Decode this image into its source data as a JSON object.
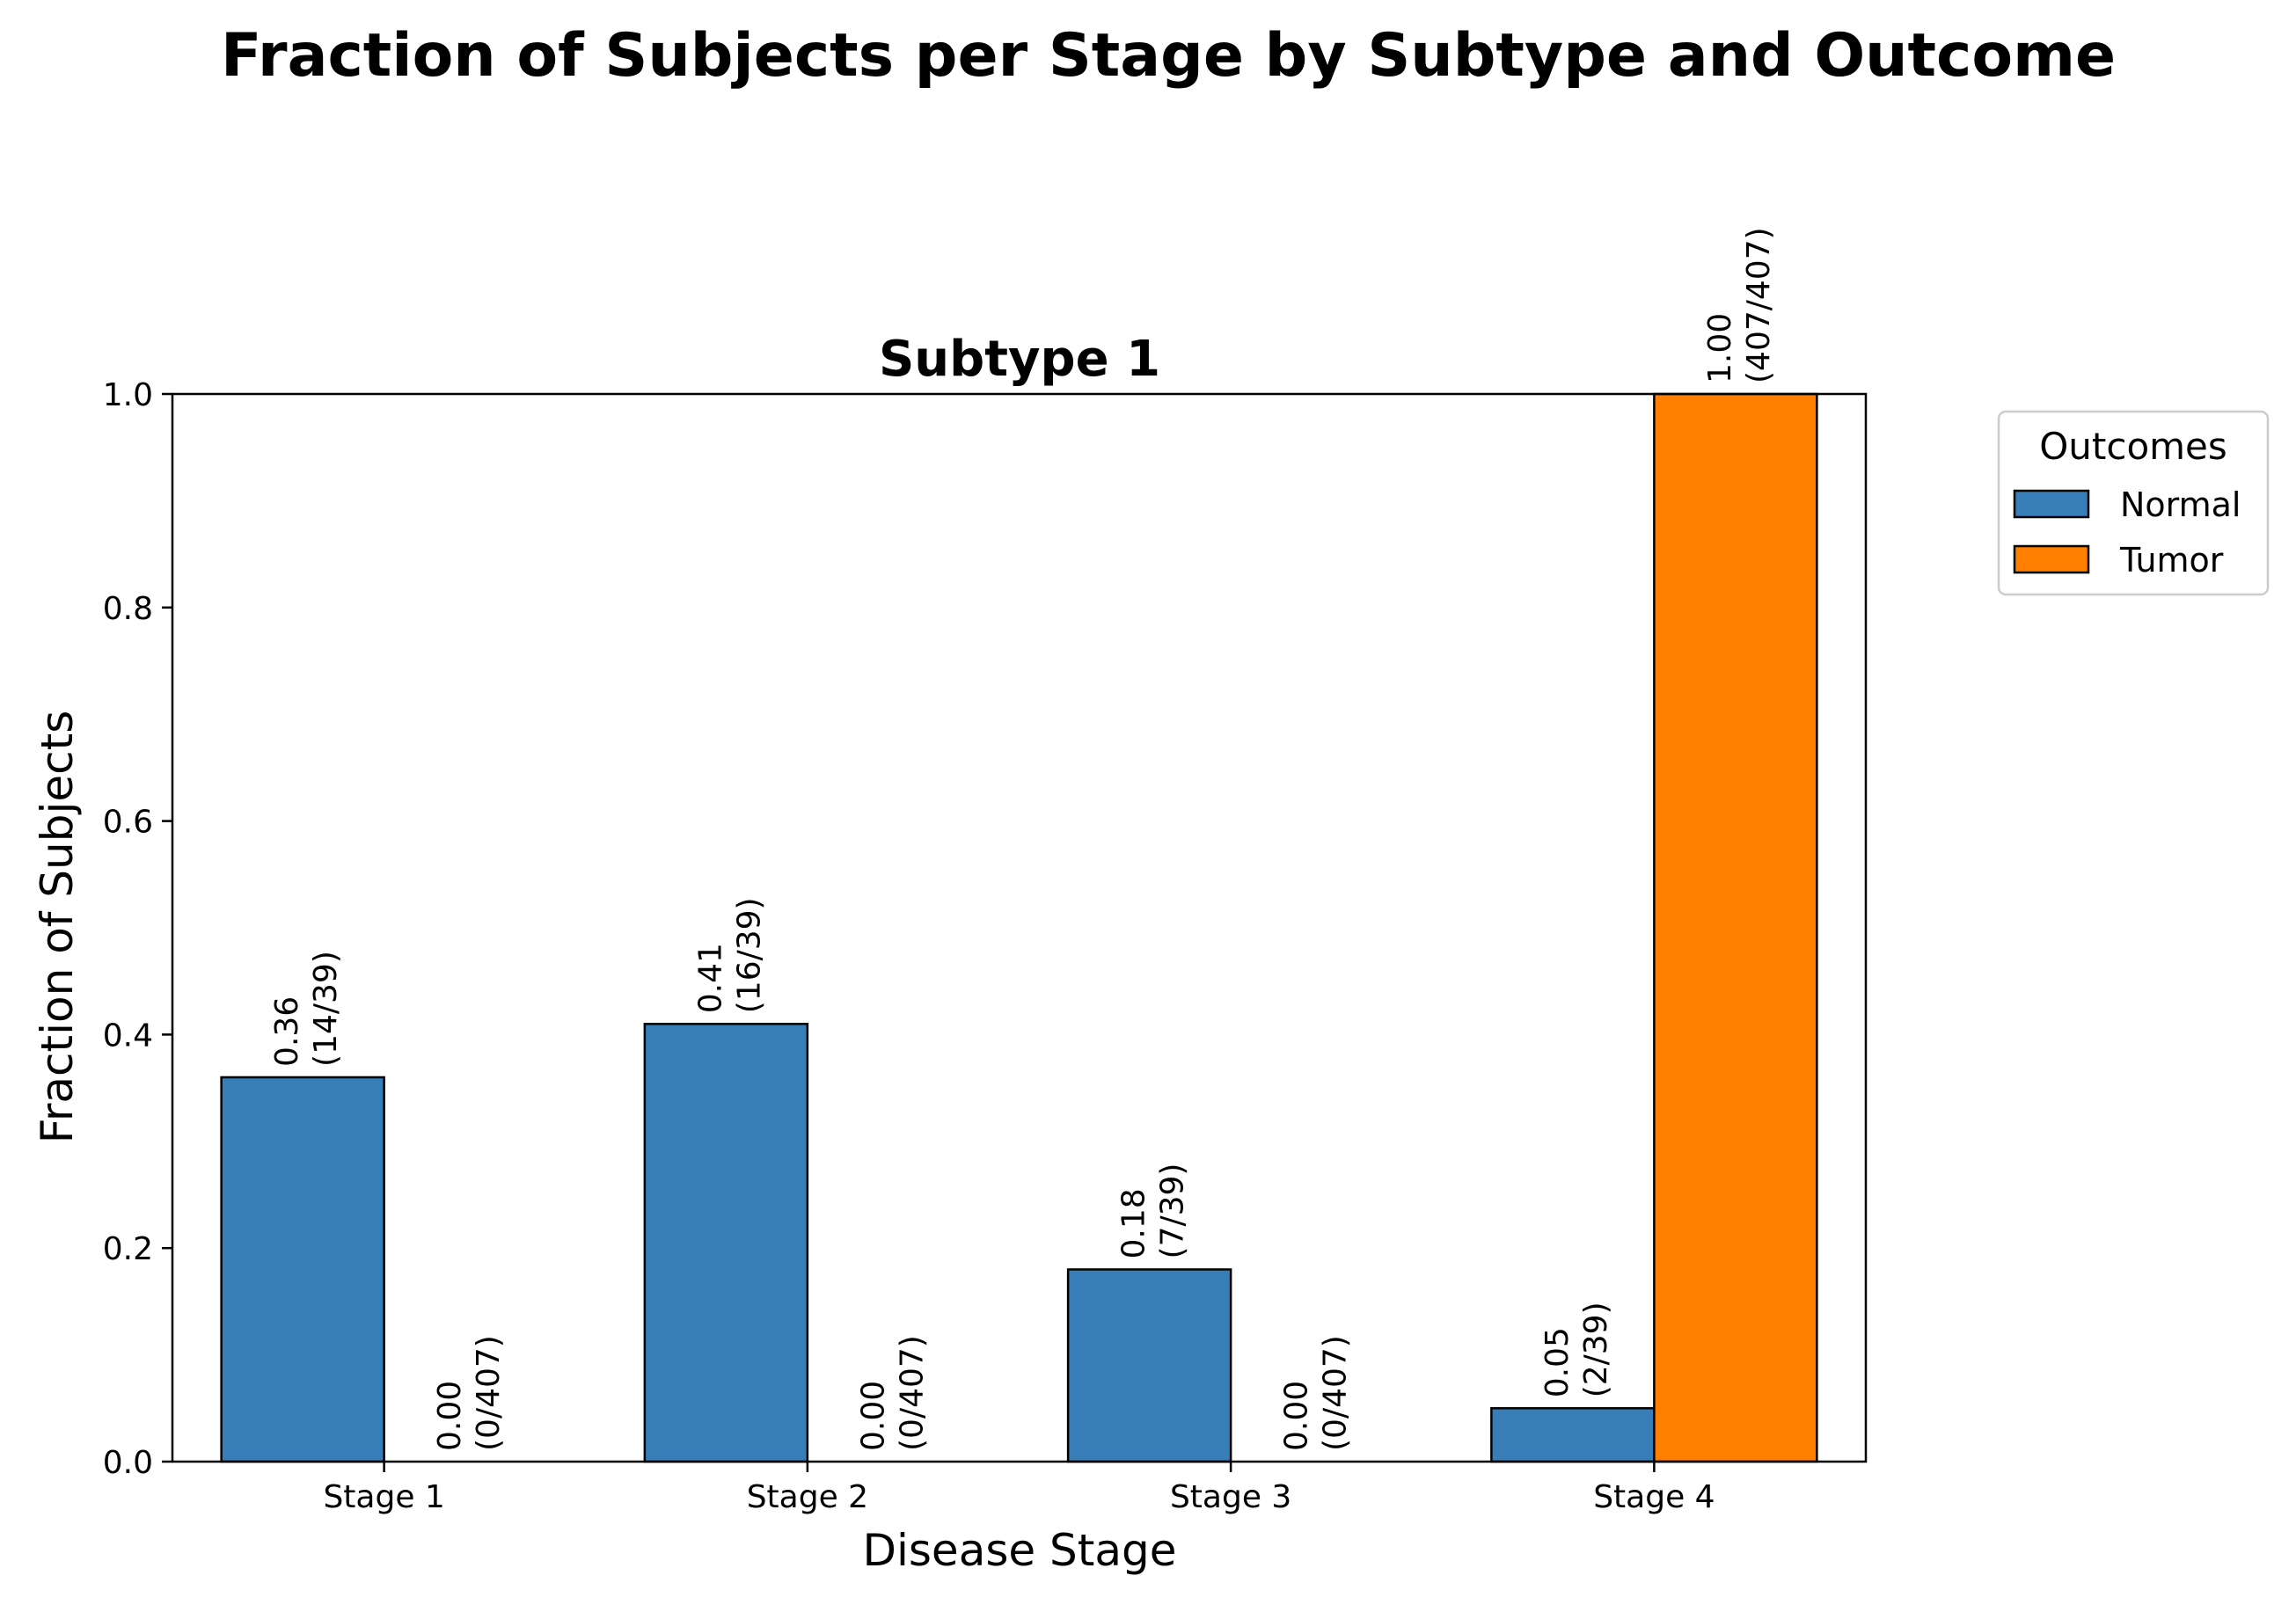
{
  "chart_data": {
    "type": "bar",
    "title": "Fraction of Subjects per Stage by Subtype and Outcome",
    "subplot_title": "Subtype 1",
    "xlabel": "Disease Stage",
    "ylabel": "Fraction of Subjects",
    "ylim": [
      0,
      1.0
    ],
    "yticks": [
      "0.0",
      "0.2",
      "0.4",
      "0.6",
      "0.8",
      "1.0"
    ],
    "categories": [
      "Stage 1",
      "Stage 2",
      "Stage 3",
      "Stage 4"
    ],
    "series": [
      {
        "name": "Normal",
        "color": "#377eb8",
        "values": [
          0.36,
          0.41,
          0.18,
          0.05
        ],
        "labels": [
          "0.36\n(14/39)",
          "0.41\n(16/39)",
          "0.18\n(7/39)",
          "0.05\n(2/39)"
        ]
      },
      {
        "name": "Tumor",
        "color": "#ff7f00",
        "values": [
          0.0,
          0.0,
          0.0,
          1.0
        ],
        "labels": [
          "0.00\n(0/407)",
          "0.00\n(0/407)",
          "0.00\n(0/407)",
          "1.00\n(407/407)"
        ]
      }
    ],
    "legend": {
      "title": "Outcomes",
      "placement": "outside-right"
    },
    "grid": false
  }
}
